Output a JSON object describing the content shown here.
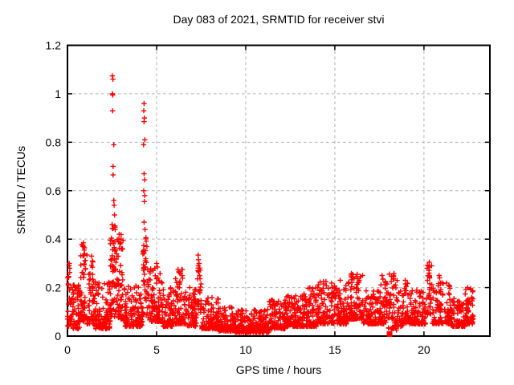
{
  "chart_data": {
    "type": "scatter",
    "title": "Day 083 of 2021, SRMTID for receiver stvi",
    "xlabel": "GPS time / hours",
    "ylabel": "SRMTID / TECUs",
    "xlim": [
      0,
      23.7
    ],
    "ylim": [
      0,
      1.2
    ],
    "xticks": [
      0,
      5,
      10,
      15,
      20
    ],
    "xtick_labels": [
      "0",
      "5",
      "10",
      "15",
      "20"
    ],
    "yticks": [
      0,
      0.2,
      0.4,
      0.6,
      0.8,
      1.0,
      1.2
    ],
    "ytick_labels": [
      "0",
      "0.2",
      "0.4",
      "0.6",
      "0.8",
      "1",
      "1.2"
    ],
    "grid": true,
    "legend": "none",
    "marker": "plus",
    "marker_color": "#ff0000",
    "grid_color": "#b0b0b0",
    "axis_color": "#000000",
    "background_color": "#ffffff",
    "seed": 20210833,
    "points_high": [
      [
        2.52,
        1.074
      ],
      [
        2.55,
        1.06
      ],
      [
        2.52,
        1.0
      ],
      [
        2.54,
        0.995
      ],
      [
        2.53,
        0.93
      ],
      [
        2.6,
        0.79
      ],
      [
        2.56,
        0.7
      ],
      [
        2.56,
        0.665
      ],
      [
        2.6,
        0.56
      ],
      [
        2.62,
        0.54
      ],
      [
        2.64,
        0.5
      ],
      [
        2.66,
        0.455
      ],
      [
        2.68,
        0.44
      ],
      [
        4.3,
        0.96
      ],
      [
        4.28,
        0.93
      ],
      [
        4.32,
        0.9
      ],
      [
        4.3,
        0.885
      ],
      [
        4.34,
        0.81
      ],
      [
        4.27,
        0.79
      ],
      [
        4.3,
        0.67
      ],
      [
        4.33,
        0.645
      ],
      [
        4.28,
        0.6
      ],
      [
        4.34,
        0.58
      ],
      [
        4.31,
        0.555
      ],
      [
        4.3,
        0.47
      ],
      [
        4.35,
        0.44
      ],
      [
        0.1,
        0.3
      ],
      [
        0.13,
        0.28
      ],
      [
        0.9,
        0.385
      ],
      [
        0.86,
        0.37
      ],
      [
        0.94,
        0.355
      ],
      [
        1.35,
        0.33
      ],
      [
        1.4,
        0.31
      ],
      [
        2.9,
        0.42
      ],
      [
        3.0,
        0.4
      ],
      [
        2.95,
        0.38
      ],
      [
        5.0,
        0.3
      ],
      [
        5.05,
        0.285
      ],
      [
        6.2,
        0.275
      ],
      [
        6.35,
        0.26
      ],
      [
        7.33,
        0.334
      ],
      [
        7.35,
        0.315
      ],
      [
        7.34,
        0.29
      ],
      [
        7.36,
        0.265
      ],
      [
        9.9,
        0.015
      ],
      [
        10.4,
        0.02
      ],
      [
        13.6,
        0.2
      ],
      [
        14.5,
        0.225
      ],
      [
        15.3,
        0.23
      ],
      [
        16.25,
        0.255
      ],
      [
        16.18,
        0.245
      ],
      [
        17.65,
        0.25
      ],
      [
        17.7,
        0.235
      ],
      [
        18.28,
        0.25
      ],
      [
        18.3,
        0.235
      ],
      [
        18.35,
        0.04
      ],
      [
        18.4,
        0.032
      ],
      [
        18.46,
        0.025
      ],
      [
        18.95,
        0.23
      ],
      [
        20.3,
        0.305
      ],
      [
        20.31,
        0.285
      ],
      [
        20.29,
        0.26
      ],
      [
        20.32,
        0.24
      ],
      [
        20.85,
        0.25
      ],
      [
        20.88,
        0.24
      ],
      [
        21.4,
        0.21
      ],
      [
        22.45,
        0.2
      ]
    ],
    "square_points": [
      [
        18.07,
        0.008
      ]
    ],
    "band_segments_format": [
      "x_start",
      "x_end",
      "y_min",
      "y_max",
      "count",
      "bottom_bias_exponent"
    ],
    "band_segments": [
      [
        0.0,
        0.3,
        0.04,
        0.3,
        40,
        1.6
      ],
      [
        0.3,
        0.7,
        0.03,
        0.22,
        50,
        2.0
      ],
      [
        0.7,
        1.1,
        0.06,
        0.385,
        60,
        1.6
      ],
      [
        1.1,
        1.5,
        0.05,
        0.33,
        50,
        1.8
      ],
      [
        1.5,
        2.4,
        0.03,
        0.24,
        110,
        2.2
      ],
      [
        2.4,
        2.75,
        0.08,
        0.46,
        60,
        1.4
      ],
      [
        2.75,
        3.15,
        0.07,
        0.42,
        55,
        1.6
      ],
      [
        3.15,
        4.2,
        0.04,
        0.21,
        120,
        2.2
      ],
      [
        4.2,
        4.5,
        0.08,
        0.42,
        40,
        1.4
      ],
      [
        4.5,
        5.35,
        0.06,
        0.28,
        95,
        2.0
      ],
      [
        5.35,
        6.0,
        0.04,
        0.2,
        75,
        2.2
      ],
      [
        6.0,
        6.6,
        0.05,
        0.28,
        70,
        2.0
      ],
      [
        6.6,
        7.25,
        0.04,
        0.2,
        70,
        2.2
      ],
      [
        7.25,
        7.5,
        0.07,
        0.3,
        28,
        1.3
      ],
      [
        7.5,
        8.5,
        0.03,
        0.16,
        105,
        2.2
      ],
      [
        8.5,
        9.3,
        0.02,
        0.12,
        90,
        2.2
      ],
      [
        9.3,
        11.3,
        0.015,
        0.11,
        215,
        2.2
      ],
      [
        11.3,
        12.2,
        0.03,
        0.15,
        100,
        2.2
      ],
      [
        12.2,
        13.2,
        0.04,
        0.17,
        110,
        2.2
      ],
      [
        13.2,
        14.0,
        0.04,
        0.2,
        90,
        2.2
      ],
      [
        14.0,
        15.0,
        0.05,
        0.225,
        110,
        2.0
      ],
      [
        15.0,
        15.7,
        0.05,
        0.21,
        80,
        2.0
      ],
      [
        15.7,
        16.6,
        0.07,
        0.26,
        100,
        2.0
      ],
      [
        16.6,
        17.4,
        0.05,
        0.19,
        85,
        2.2
      ],
      [
        17.4,
        18.0,
        0.05,
        0.23,
        60,
        2.0
      ],
      [
        18.0,
        18.45,
        0.03,
        0.26,
        42,
        1.4
      ],
      [
        18.45,
        19.1,
        0.04,
        0.23,
        65,
        2.0
      ],
      [
        19.1,
        20.1,
        0.05,
        0.19,
        100,
        2.2
      ],
      [
        20.1,
        20.45,
        0.08,
        0.3,
        32,
        1.3
      ],
      [
        20.45,
        21.5,
        0.05,
        0.22,
        110,
        2.1
      ],
      [
        21.5,
        22.3,
        0.04,
        0.16,
        85,
        2.2
      ],
      [
        22.3,
        22.78,
        0.05,
        0.2,
        55,
        2.0
      ]
    ]
  }
}
